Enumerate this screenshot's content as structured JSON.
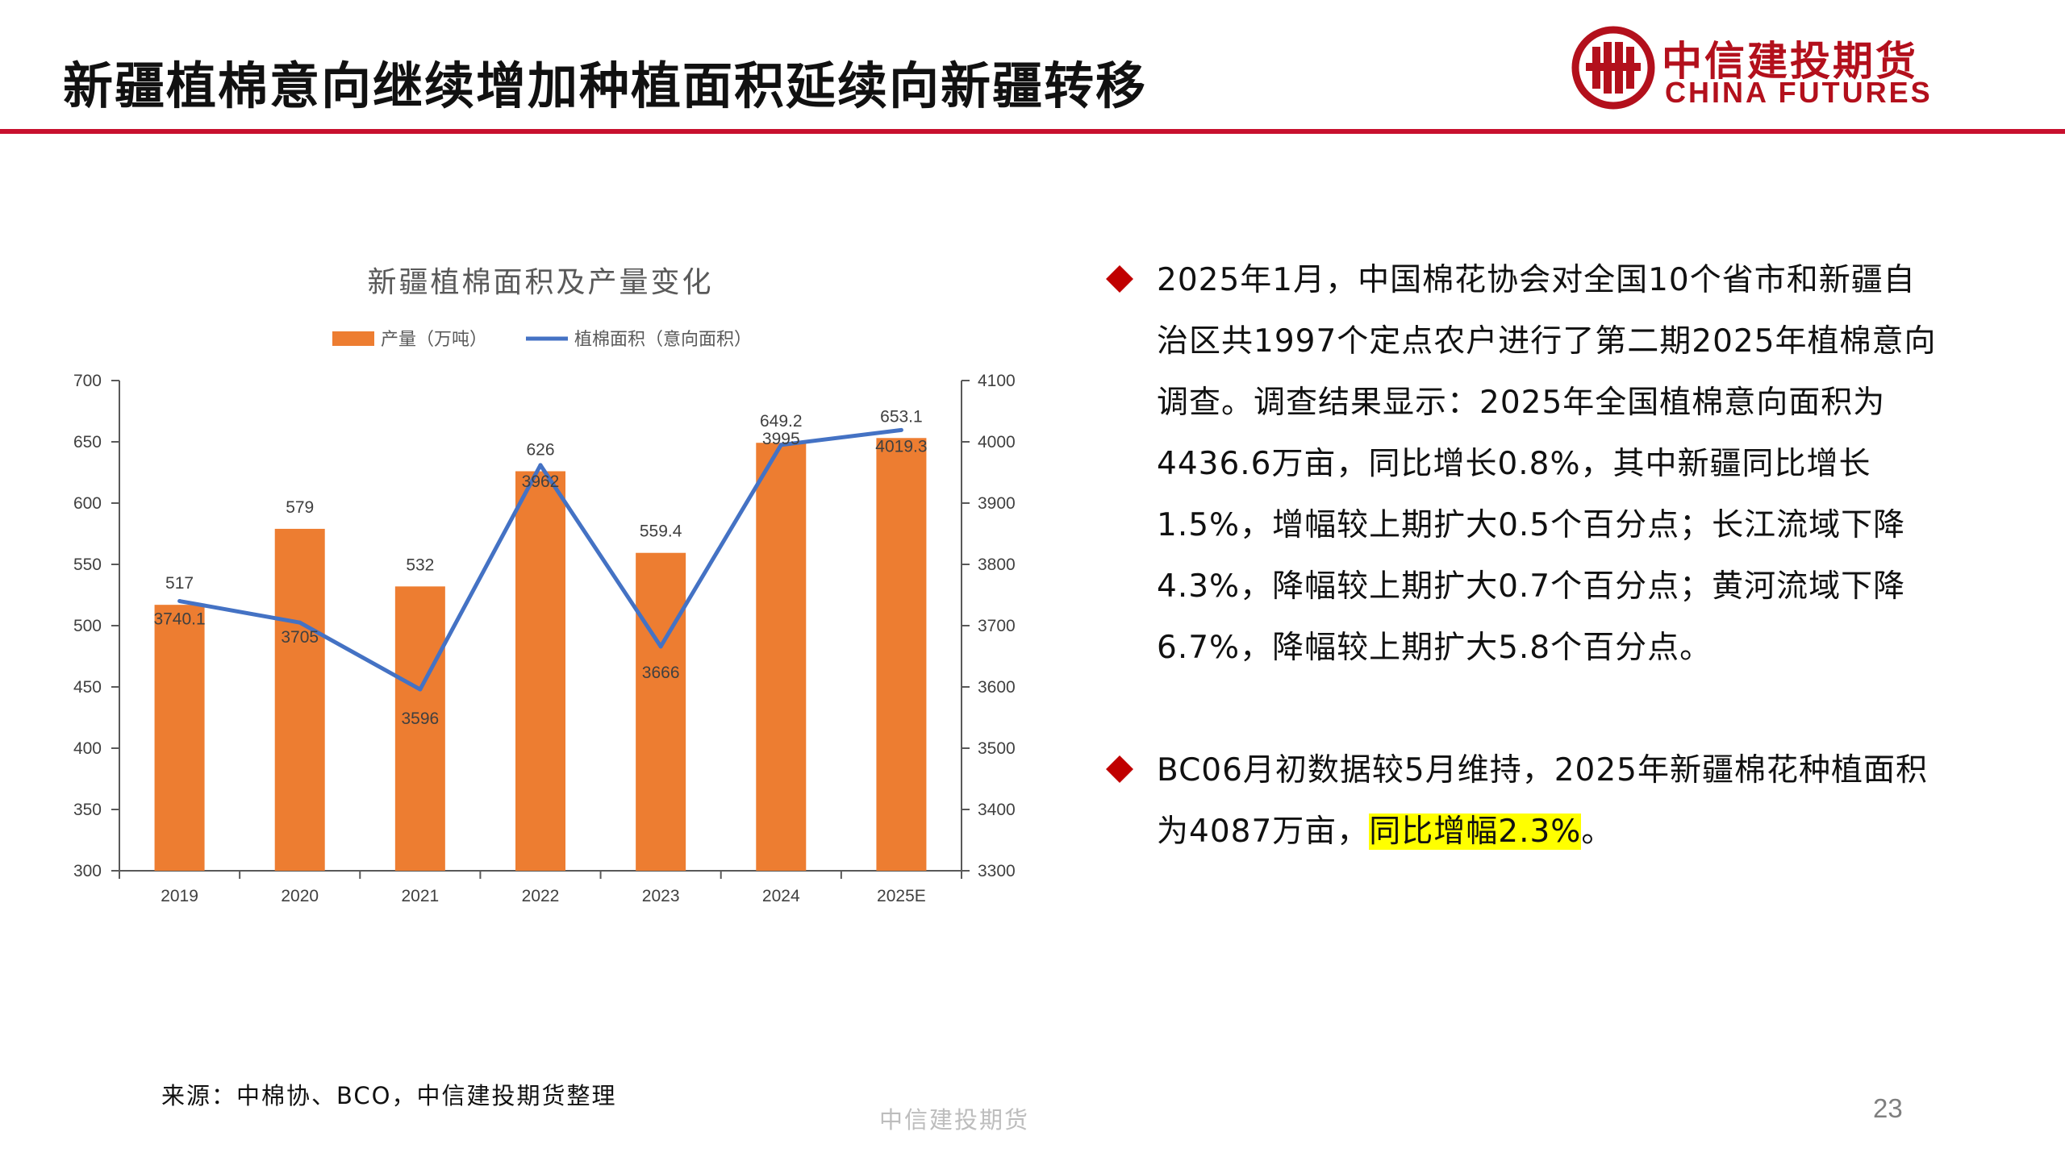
{
  "header": {
    "title": "新疆植棉意向继续增加种植面积延续向新疆转移",
    "logo_cn": "中信建投期货",
    "logo_en": "CHINA FUTURES"
  },
  "colors": {
    "accent_red": "#c8102e",
    "bar_orange": "#ed7d31",
    "line_blue": "#4472c4",
    "highlight_yellow": "#ffff00"
  },
  "chart_data": {
    "type": "bar+line",
    "title": "新疆植棉面积及产量变化",
    "categories": [
      "2019",
      "2020",
      "2021",
      "2022",
      "2023",
      "2024",
      "2025E"
    ],
    "series": [
      {
        "name": "产量（万吨）",
        "type": "bar",
        "axis": "left",
        "values": [
          517,
          579,
          532,
          626,
          559.4,
          649.2,
          653.1
        ],
        "labels": [
          "517",
          "579",
          "532",
          "626",
          "559.4",
          "649.2",
          "653.1"
        ],
        "color": "#ed7d31"
      },
      {
        "name": "植棉面积（意向面积）",
        "type": "line",
        "axis": "right",
        "values": [
          3740.1,
          3705,
          3596,
          3962,
          3666,
          3995,
          4019.3
        ],
        "labels": [
          "3740.1",
          "3705",
          "3596",
          "3962",
          "3666",
          "3995",
          "4019.3"
        ],
        "color": "#4472c4"
      }
    ],
    "y_left": {
      "min": 300,
      "max": 700,
      "ticks": [
        "300",
        "350",
        "400",
        "450",
        "500",
        "550",
        "600",
        "650",
        "700"
      ]
    },
    "y_right": {
      "min": 3300,
      "max": 4100,
      "ticks": [
        "3300",
        "3400",
        "3500",
        "3600",
        "3700",
        "3800",
        "3900",
        "4000",
        "4100"
      ]
    },
    "grid": false,
    "legend_position": "top"
  },
  "bullets": [
    {
      "text": "2025年1月，中国棉花协会对全国10个省市和新疆自治区共1997个定点农户进行了第二期2025年植棉意向调查。调查结果显示：2025年全国植棉意向面积为4436.6万亩，同比增长0.8%，其中新疆同比增长1.5%，增幅较上期扩大0.5个百分点；长江流域下降4.3%，降幅较上期扩大0.7个百分点；黄河流域下降6.7%，降幅较上期扩大5.8个百分点。"
    },
    {
      "text_before": "BC06月初数据较5月维持，2025年新疆棉花种植面积为4087万亩，",
      "text_highlight": "同比增幅2.3%",
      "text_after": "。"
    }
  ],
  "footer": {
    "source": "来源：中棉协、BCO，中信建投期货整理",
    "center_text": "中信建投期货",
    "page_number": "23"
  }
}
